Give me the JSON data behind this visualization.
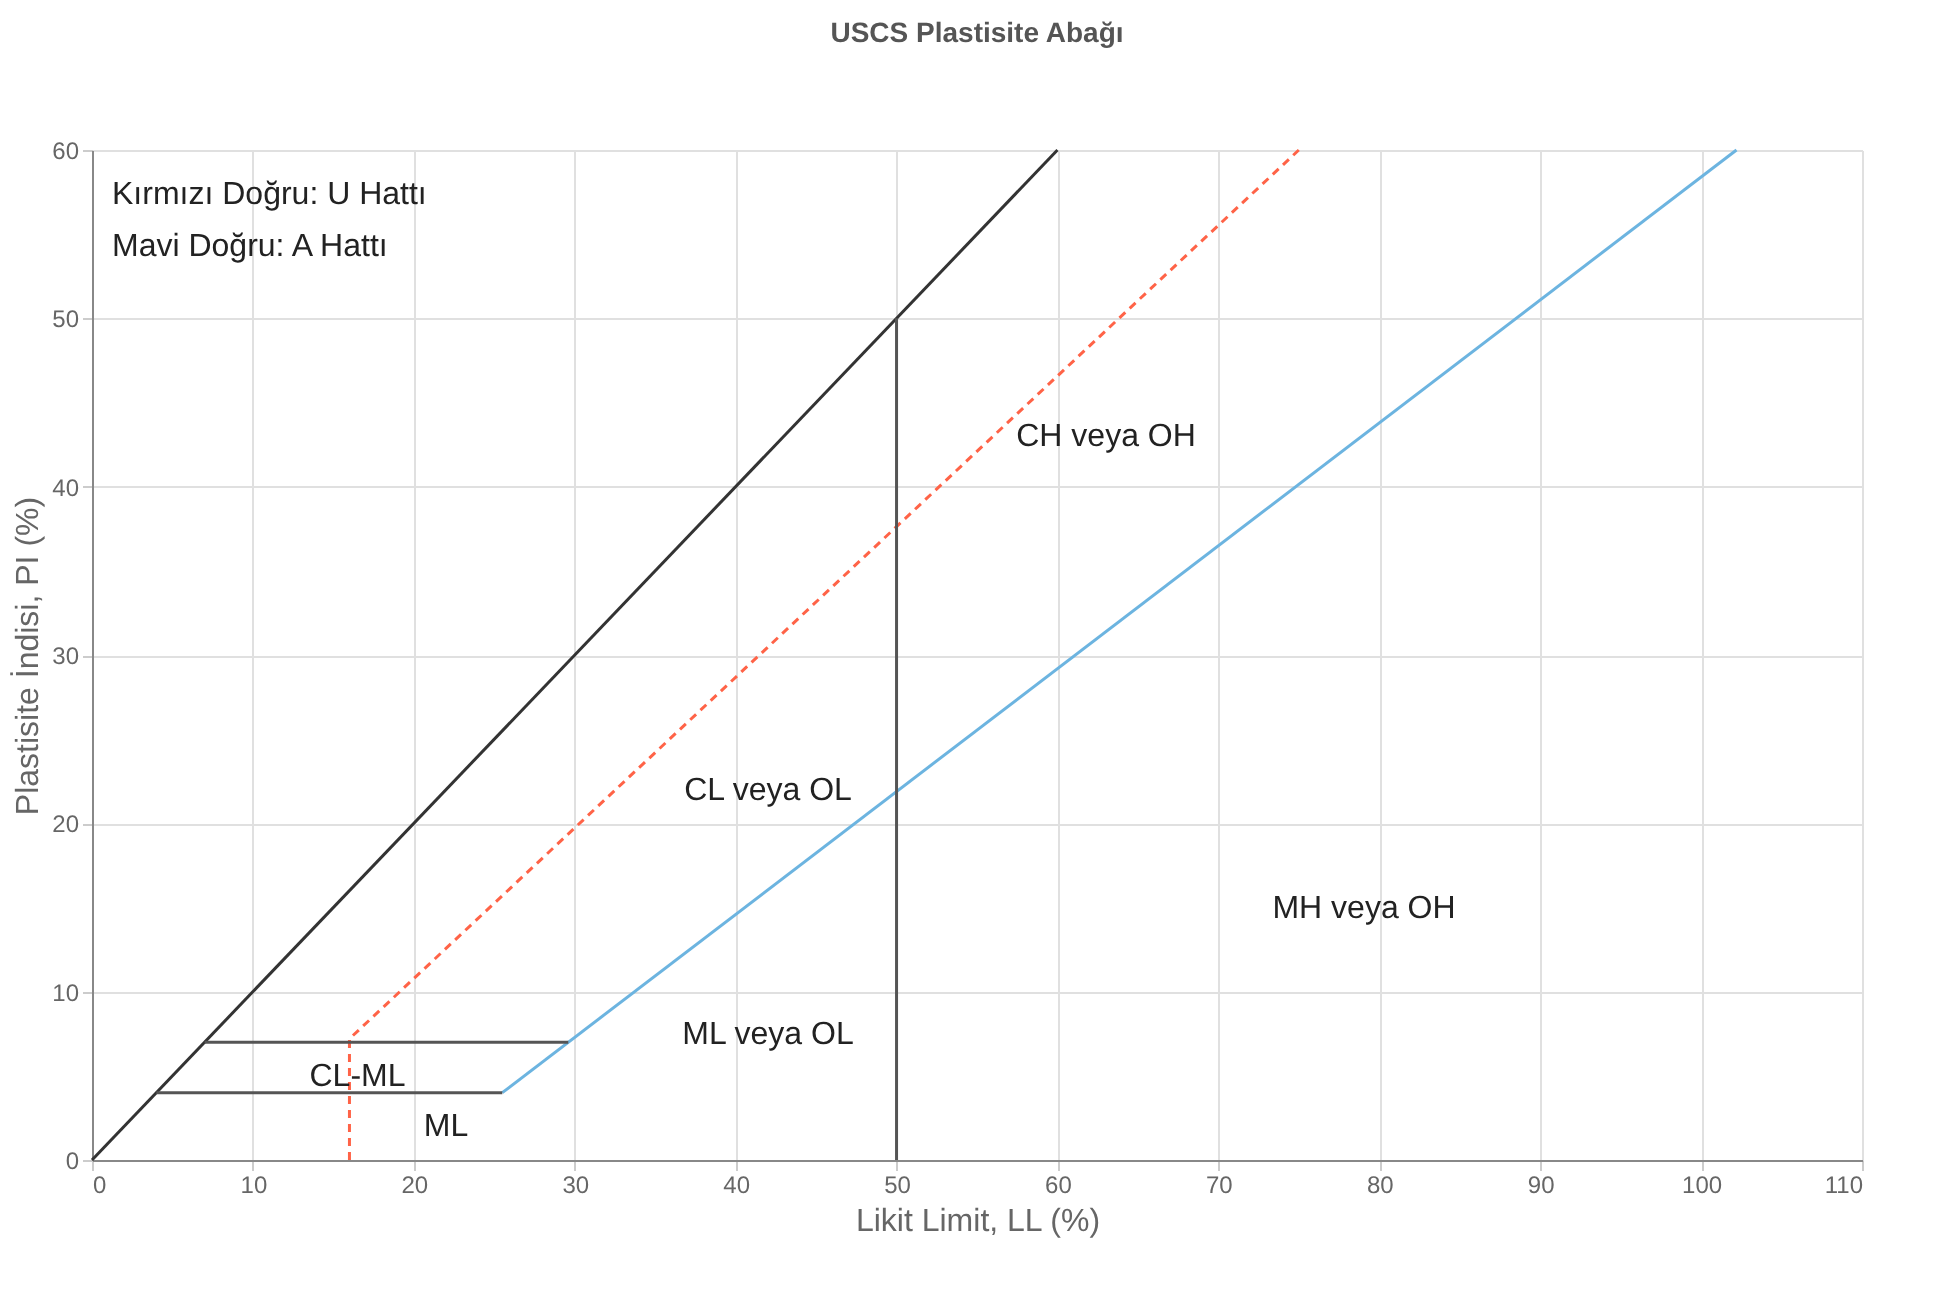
{
  "chart_data": {
    "type": "line",
    "title": "USCS Plastisite Abağı",
    "xlabel": "Likit Limit, LL (%)",
    "ylabel": "Plastisite İndisi, PI (%)",
    "xlim": [
      0,
      110
    ],
    "xticks": [
      0,
      10,
      20,
      30,
      40,
      50,
      60,
      70,
      80,
      90,
      100,
      110
    ],
    "ylim": [
      0,
      60
    ],
    "yticks": [
      0,
      10,
      20,
      30,
      40,
      50,
      60
    ],
    "grid": true,
    "marker": "none",
    "series": [
      {
        "x": [
          0,
          60
        ],
        "values": [
          0,
          60
        ],
        "color": "#333333"
      },
      {
        "x": [
          16,
          16,
          75
        ],
        "values": [
          0,
          7.2,
          60
        ],
        "color": "#ff6347",
        "line_style": "dashed"
      },
      {
        "x": [
          25.5,
          102.2
        ],
        "values": [
          4,
          60
        ],
        "color": "#6cb4e0"
      },
      {
        "x": [
          7,
          29.6
        ],
        "values": [
          7,
          7
        ],
        "color": "#555555"
      },
      {
        "x": [
          4,
          25.5
        ],
        "values": [
          4,
          4
        ],
        "color": "#555555"
      },
      {
        "x": [
          50,
          50
        ],
        "values": [
          0,
          50
        ],
        "color": "#555555"
      }
    ],
    "annotations": [
      "Kırmızı Doğru: U Hattı",
      "Mavi Doğru: A Hattı",
      "CH veya OH",
      "CL veya OL",
      "MH veya OH",
      "ML veya OL",
      {
        "text": "CL-ML",
        "x": 16.5,
        "y": 5
      },
      "ML"
    ]
  }
}
